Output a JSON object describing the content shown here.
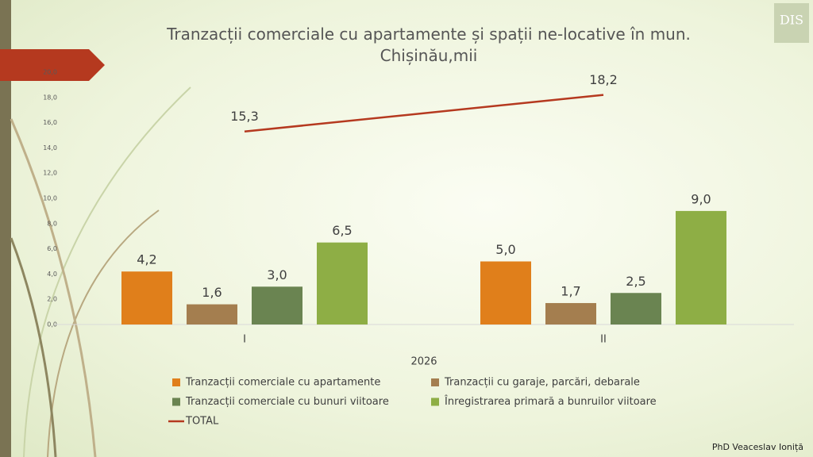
{
  "chart_data": {
    "type": "bar",
    "title": "Tranzacții comerciale cu apartamente și spații ne-locative în mun. Chișinău,mii",
    "x_label": "2026",
    "categories": [
      "I",
      "II"
    ],
    "ylim": [
      0,
      20
    ],
    "yticks": [
      {
        "value": 0,
        "label": "0,0"
      },
      {
        "value": 2,
        "label": "2,0"
      },
      {
        "value": 4,
        "label": "4,0"
      },
      {
        "value": 6,
        "label": "6,0"
      },
      {
        "value": 8,
        "label": "8,0"
      },
      {
        "value": 10,
        "label": "10,0"
      },
      {
        "value": 12,
        "label": "12,0"
      },
      {
        "value": 14,
        "label": "14,0"
      },
      {
        "value": 16,
        "label": "16,0"
      },
      {
        "value": 18,
        "label": "18,0"
      },
      {
        "value": 20,
        "label": "20,0"
      }
    ],
    "grid": false,
    "series": [
      {
        "name": "Tranzacții comerciale cu apartamente",
        "color": "#e07f1b",
        "values": [
          4.2,
          5.0
        ],
        "value_labels": [
          "4,2",
          "5,0"
        ]
      },
      {
        "name": "Tranzacții cu garaje, parcări, debarale",
        "color": "#a47e4f",
        "values": [
          1.6,
          1.7
        ],
        "value_labels": [
          "1,6",
          "1,7"
        ]
      },
      {
        "name": "Tranzacții comerciale cu bunuri viitoare",
        "color": "#6a8451",
        "values": [
          3.0,
          2.5
        ],
        "value_labels": [
          "3,0",
          "2,5"
        ]
      },
      {
        "name": "Înregistrarea primară a bunruilor viitoare",
        "color": "#8eae45",
        "values": [
          6.5,
          9.0
        ],
        "value_labels": [
          "6,5",
          "9,0"
        ]
      },
      {
        "name": "TOTAL",
        "type": "line",
        "color": "#b5391f",
        "values": [
          15.3,
          18.2
        ],
        "value_labels": [
          "15,3",
          "18,2"
        ]
      }
    ]
  },
  "logo": "DIS",
  "footer": "PhD Veaceslav Ioniță"
}
